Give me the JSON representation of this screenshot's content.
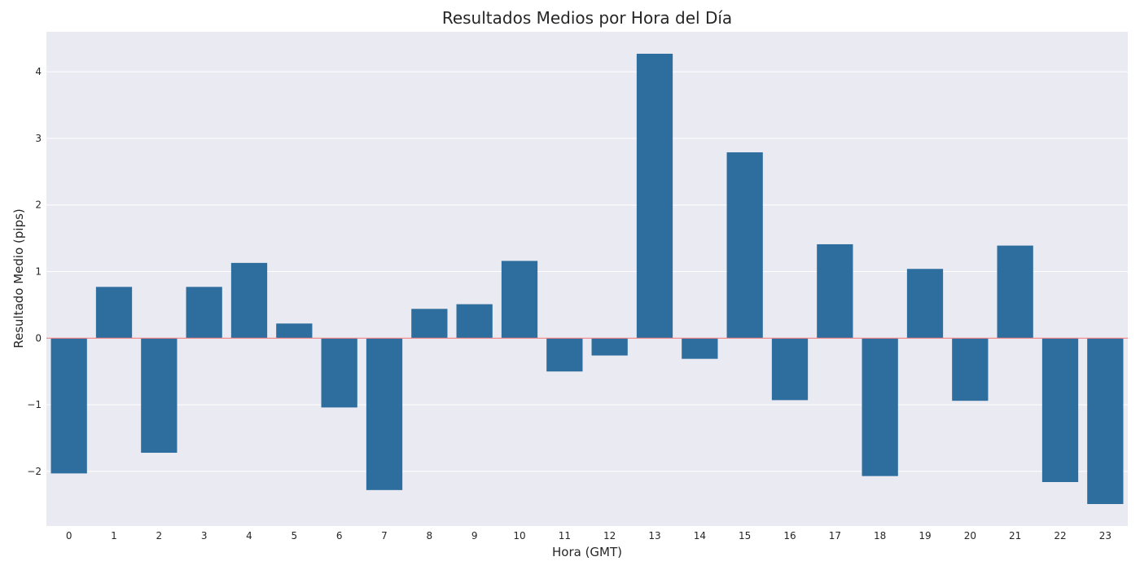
{
  "chart_data": {
    "type": "bar",
    "title": "Resultados Medios por Hora del Día",
    "xlabel": "Hora (GMT)",
    "ylabel": "Resultado Medio (pips)",
    "categories": [
      "0",
      "1",
      "2",
      "3",
      "4",
      "5",
      "6",
      "7",
      "8",
      "9",
      "10",
      "11",
      "12",
      "13",
      "14",
      "15",
      "16",
      "17",
      "18",
      "19",
      "20",
      "21",
      "22",
      "23"
    ],
    "values": [
      -2.03,
      0.77,
      -1.72,
      0.77,
      1.13,
      0.22,
      -1.04,
      -2.28,
      0.44,
      0.51,
      1.16,
      -0.5,
      -0.26,
      4.27,
      -0.31,
      2.79,
      -0.93,
      1.41,
      -2.07,
      1.04,
      -0.94,
      1.39,
      -2.16,
      -2.49
    ],
    "ylim": [
      -2.82,
      4.6
    ],
    "yticks": [
      -2,
      -1,
      0,
      1,
      2,
      3,
      4
    ],
    "ytick_labels": [
      "−2",
      "−1",
      "0",
      "1",
      "2",
      "3",
      "4"
    ],
    "reference_line": 0,
    "grid": true,
    "colors": {
      "bar": "#2e6e9e",
      "plot_background": "#eaeaf2",
      "grid": "#ffffff",
      "reference_line": "#f08080"
    }
  }
}
